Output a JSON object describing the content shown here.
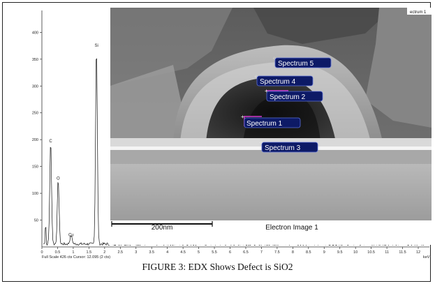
{
  "caption": "FIGURE 3: EDX Shows Defect is SiO2",
  "sem_image": {
    "title": "Electron Image 1",
    "scale_bar_label": "200nm",
    "corner_label": "ectrum 1",
    "spectrum_labels": [
      "Spectrum 5",
      "Spectrum 4",
      "Spectrum 2",
      "Spectrum 1",
      "Spectrum 3"
    ]
  },
  "spectrum_footer": "Full Scale 426 cts Cursor: 12.095 (2 cts)",
  "chart_data": {
    "type": "line",
    "xlabel": "keV",
    "ylabel": "",
    "xlim": [
      0,
      12.2
    ],
    "ylim": [
      0,
      420
    ],
    "y_ticks": [
      "50",
      "100",
      "150",
      "200",
      "250",
      "300",
      "350",
      "400"
    ],
    "x_ticks": [
      "0",
      "0.5",
      "1",
      "1.5",
      "2",
      "2.5",
      "3",
      "3.5",
      "4",
      "4.5",
      "5",
      "5.5",
      "6",
      "6.5",
      "7",
      "7.5",
      "8",
      "8.5",
      "9",
      "9.5",
      "10",
      "10.5",
      "11",
      "11.5",
      "12"
    ],
    "peaks": [
      {
        "label": "C",
        "x": 0.28,
        "y": 190
      },
      {
        "label": "O",
        "x": 0.52,
        "y": 120
      },
      {
        "label": "Cu",
        "x": 0.93,
        "y": 15
      },
      {
        "label": "Si",
        "x": 1.74,
        "y": 368
      },
      {
        "label": "Cu",
        "x": 8.04,
        "y": 10
      },
      {
        "label": "Cu",
        "x": 8.9,
        "y": 6
      }
    ]
  }
}
